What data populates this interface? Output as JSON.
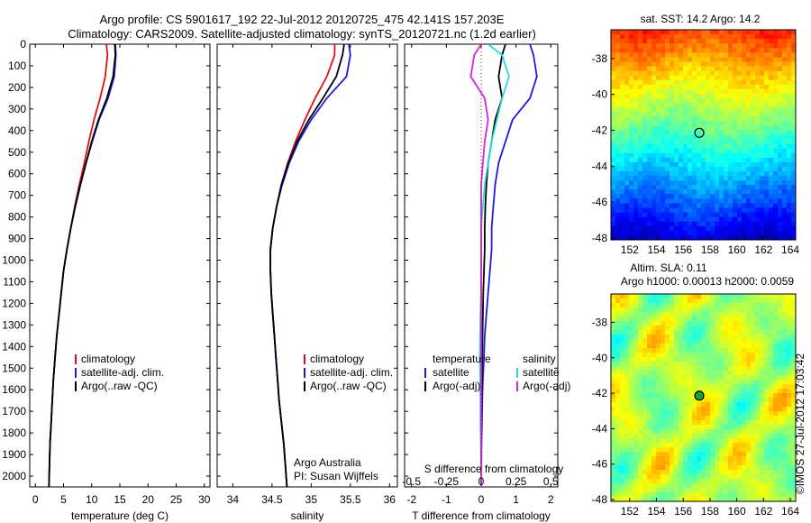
{
  "header": {
    "line1": "Argo profile: CS 5901617_192 22-Jul-2012 20120725_475 42.141S 157.203E",
    "line2": "Climatology: CARS2009. Satellite-adjusted climatology: synTS_20120721.nc (1.2d earlier)"
  },
  "colors": {
    "climatology": "#dd1111",
    "satellite": "#1a1ae6",
    "argo": "#000000",
    "sal_satellite": "#22dddd",
    "sal_argo": "#dd22dd"
  },
  "chart_data": [
    {
      "type": "line",
      "panel": "temperature",
      "xlabel": "temperature (deg C)",
      "ylabel": "",
      "xlim": [
        -1,
        31
      ],
      "ylim": [
        2050,
        0
      ],
      "y_inverted": true,
      "xticks": [
        "0",
        "5",
        "10",
        "15",
        "20",
        "25",
        "30"
      ],
      "yticks": [
        "0",
        "100",
        "200",
        "300",
        "400",
        "500",
        "600",
        "700",
        "800",
        "900",
        "1000",
        "1100",
        "1200",
        "1300",
        "1400",
        "1500",
        "1600",
        "1700",
        "1800",
        "1900",
        "2000"
      ],
      "legend": [
        "climatology",
        "satellite-adj. clim.",
        "Argo(..raw -QC)"
      ],
      "series": [
        {
          "name": "climatology",
          "x": [
            12.6,
            12.8,
            12.4,
            11.5,
            10.4,
            9.5,
            8.7,
            7.8,
            7.0,
            6.3,
            5.6,
            5.0,
            4.6,
            4.2,
            3.8,
            3.5,
            3.2,
            3.0,
            2.8,
            2.6,
            2.5,
            2.4
          ],
          "y": [
            0,
            50,
            150,
            250,
            350,
            450,
            550,
            650,
            750,
            850,
            950,
            1050,
            1150,
            1250,
            1350,
            1450,
            1550,
            1650,
            1750,
            1850,
            1950,
            2050
          ]
        },
        {
          "name": "satellite-adj. clim.",
          "x": [
            14.2,
            14.3,
            14.0,
            12.9,
            11.3,
            10.1,
            9.0,
            8.0,
            7.1,
            6.3,
            5.6,
            5.0,
            4.6,
            4.2,
            3.8,
            3.5,
            3.2,
            3.0,
            2.8,
            2.6,
            2.5,
            2.4
          ],
          "y": [
            0,
            50,
            150,
            250,
            350,
            450,
            550,
            650,
            750,
            850,
            950,
            1050,
            1150,
            1250,
            1350,
            1450,
            1550,
            1650,
            1750,
            1850,
            1950,
            2050
          ]
        },
        {
          "name": "Argo(..raw -QC)",
          "x": [
            14.1,
            14.2,
            13.8,
            12.7,
            11.2,
            10.0,
            9.0,
            8.0,
            7.1,
            6.3,
            5.6,
            5.0,
            4.6,
            4.2,
            3.8,
            3.5,
            3.2,
            3.0,
            2.8,
            2.6,
            2.5,
            2.4
          ],
          "y": [
            0,
            50,
            150,
            250,
            350,
            450,
            550,
            650,
            750,
            850,
            950,
            1050,
            1150,
            1250,
            1350,
            1450,
            1550,
            1650,
            1750,
            1850,
            1950,
            2050
          ]
        }
      ]
    },
    {
      "type": "line",
      "panel": "salinity",
      "xlabel": "salinity",
      "xlim": [
        33.8,
        36.1
      ],
      "ylim": [
        2050,
        0
      ],
      "y_inverted": true,
      "xticks": [
        "34",
        "34.5",
        "35",
        "35.5",
        "36"
      ],
      "legend": [
        "climatology",
        "satellite-adj. clim.",
        "Argo(..raw -QC)"
      ],
      "annotation": [
        "Argo Australia",
        "PI: Susan Wijffels"
      ],
      "series": [
        {
          "name": "climatology",
          "x": [
            35.3,
            35.3,
            35.2,
            35.05,
            34.92,
            34.8,
            34.7,
            34.62,
            34.56,
            34.51,
            34.48,
            34.48,
            34.49,
            34.51,
            34.53,
            34.55,
            34.57,
            34.59,
            34.62,
            34.65,
            34.67,
            34.69
          ],
          "y": [
            0,
            50,
            150,
            250,
            350,
            450,
            550,
            650,
            750,
            850,
            950,
            1050,
            1150,
            1250,
            1350,
            1450,
            1550,
            1650,
            1750,
            1850,
            1950,
            2050
          ]
        },
        {
          "name": "satellite-adj. clim.",
          "x": [
            35.48,
            35.5,
            35.45,
            35.2,
            35.0,
            34.84,
            34.72,
            34.63,
            34.56,
            34.51,
            34.48,
            34.48,
            34.49,
            34.51,
            34.53,
            34.55,
            34.57,
            34.59,
            34.62,
            34.65,
            34.67,
            34.69
          ],
          "y": [
            0,
            50,
            150,
            250,
            350,
            450,
            550,
            650,
            750,
            850,
            950,
            1050,
            1150,
            1250,
            1350,
            1450,
            1550,
            1650,
            1750,
            1850,
            1950,
            2050
          ]
        },
        {
          "name": "Argo(..raw -QC)",
          "x": [
            35.42,
            35.4,
            35.32,
            35.15,
            34.97,
            34.82,
            34.71,
            34.62,
            34.56,
            34.51,
            34.48,
            34.48,
            34.49,
            34.51,
            34.53,
            34.55,
            34.57,
            34.59,
            34.62,
            34.65,
            34.67,
            34.69
          ],
          "y": [
            0,
            50,
            150,
            250,
            350,
            450,
            550,
            650,
            750,
            850,
            950,
            1050,
            1150,
            1250,
            1350,
            1450,
            1550,
            1650,
            1750,
            1850,
            1950,
            2050
          ]
        }
      ]
    },
    {
      "type": "line",
      "panel": "difference",
      "xlabel": "T difference from climatology",
      "top_label": "S difference from climatology",
      "xlim": [
        -2.2,
        2.2
      ],
      "ylim": [
        2050,
        0
      ],
      "y_inverted": true,
      "xticks": [
        "-2",
        "-1",
        "0",
        "1",
        "2"
      ],
      "s_xticks": [
        "-0.5",
        "-0.25",
        "0",
        "0.25",
        "0.5"
      ],
      "legend_temperature": {
        "title": "temperature",
        "items": [
          "satellite",
          "Argo(-adj)"
        ]
      },
      "legend_salinity": {
        "title": "salinity",
        "items": [
          "satellite",
          "Argo(-adj)"
        ]
      },
      "series": [
        {
          "name": "temperature satellite",
          "x": [
            1.4,
            1.5,
            1.6,
            1.4,
            0.9,
            0.7,
            0.5,
            0.4,
            0.35,
            0.3,
            0.3,
            0.25,
            0.2,
            0.15,
            0.1,
            0.08,
            0.05,
            0.03,
            0.02,
            0.01,
            0.0
          ],
          "y": [
            0,
            50,
            150,
            250,
            350,
            450,
            550,
            650,
            750,
            850,
            950,
            1050,
            1150,
            1250,
            1350,
            1450,
            1550,
            1650,
            1750,
            1850,
            2050
          ]
        },
        {
          "name": "temperature Argo(-adj)",
          "x": [
            0.7,
            0.6,
            0.5,
            0.6,
            0.4,
            0.3,
            0.2,
            0.15,
            0.12,
            0.1,
            0.1,
            0.08,
            0.06,
            0.05,
            0.04,
            0.03,
            0.02,
            0.01,
            0.01,
            0.0,
            0.0
          ],
          "y": [
            0,
            50,
            150,
            250,
            350,
            450,
            550,
            650,
            750,
            850,
            950,
            1050,
            1150,
            1250,
            1350,
            1450,
            1550,
            1650,
            1750,
            1850,
            2050
          ]
        },
        {
          "name": "salinity satellite",
          "x": [
            0.2,
            0.6,
            0.8,
            0.6,
            0.45,
            0.3,
            0.2,
            0.1,
            0.05,
            0.0,
            0.0,
            0.0,
            0.0,
            -0.02,
            -0.03,
            -0.04,
            -0.03,
            -0.02,
            -0.02,
            -0.01,
            0.0
          ],
          "y": [
            0,
            50,
            150,
            250,
            350,
            450,
            550,
            650,
            750,
            850,
            950,
            1050,
            1150,
            1250,
            1350,
            1450,
            1550,
            1650,
            1750,
            1850,
            2050
          ]
        },
        {
          "name": "salinity Argo(-adj)",
          "x": [
            0.0,
            -0.2,
            -0.3,
            0.1,
            0.2,
            0.1,
            0.05,
            0.0,
            0.0,
            0.0,
            0.0,
            0.0,
            0.0,
            0.0,
            0.0,
            0.0,
            0.0,
            0.0,
            0.0,
            0.0,
            0.0
          ],
          "y": [
            0,
            50,
            150,
            250,
            350,
            450,
            550,
            650,
            750,
            850,
            950,
            1050,
            1150,
            1250,
            1350,
            1450,
            1550,
            1650,
            1750,
            1850,
            2050
          ]
        }
      ]
    },
    {
      "type": "heatmap",
      "panel": "sst-map",
      "title": "sat. SST: 14.2 Argo: 14.2",
      "xlim": [
        150.6,
        164.4
      ],
      "ylim": [
        -48.1,
        -36.4
      ],
      "xticks": [
        "152",
        "154",
        "156",
        "158",
        "160",
        "162",
        "164"
      ],
      "yticks": [
        "-38",
        "-40",
        "-42",
        "-44",
        "-46",
        "-48"
      ],
      "marker": {
        "lon": 157.2,
        "lat": -42.14
      }
    },
    {
      "type": "heatmap",
      "panel": "sla-map",
      "title": "Altim. SLA: 0.11",
      "title2": "Argo h1000: 0.00013 h2000: 0.0059",
      "side_label": "©IMOS 27-Jul-2012 17:03:42",
      "xlim": [
        150.6,
        164.4
      ],
      "ylim": [
        -48.1,
        -36.4
      ],
      "xticks": [
        "152",
        "154",
        "156",
        "158",
        "160",
        "162",
        "164"
      ],
      "yticks": [
        "-38",
        "-40",
        "-42",
        "-44",
        "-46",
        "-48"
      ],
      "marker": {
        "lon": 157.2,
        "lat": -42.14
      }
    }
  ]
}
